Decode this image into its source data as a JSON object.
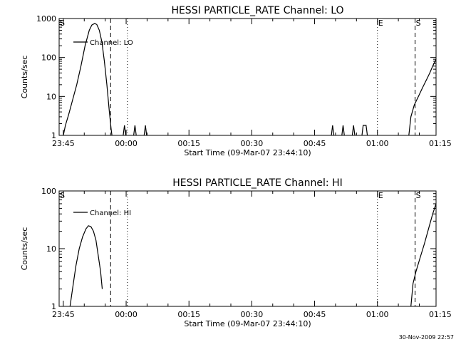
{
  "footer_timestamp": "30-Nov-2009 22:57",
  "chart_data": [
    {
      "type": "line",
      "title": "HESSI PARTICLE_RATE Channel: LO",
      "xlabel": "Start Time (09-Mar-07 23:44:10)",
      "ylabel": "Counts/sec",
      "y_scale": "log",
      "ylim": [
        1,
        1000
      ],
      "xlim": [
        -1,
        89
      ],
      "x_unit": "minutes from 23:45 (09-Mar-07)",
      "x_ticks": [
        {
          "x": 0,
          "label": "23:45"
        },
        {
          "x": 15,
          "label": "00:00"
        },
        {
          "x": 30,
          "label": "00:15"
        },
        {
          "x": 45,
          "label": "00:30"
        },
        {
          "x": 60,
          "label": "00:45"
        },
        {
          "x": 75,
          "label": "01:00"
        },
        {
          "x": 90,
          "label": "01:15"
        }
      ],
      "y_ticks": [
        {
          "y": 1,
          "label": "1"
        },
        {
          "y": 10,
          "label": "10"
        },
        {
          "y": 100,
          "label": "100"
        },
        {
          "y": 1000,
          "label": "1000"
        }
      ],
      "legend": {
        "label": "Channel: LO",
        "placement": "top-left"
      },
      "grid": false,
      "markers": [
        {
          "x": -1,
          "style": "dashed",
          "label": "S"
        },
        {
          "x": 11.3,
          "style": "dashed",
          "label": ""
        },
        {
          "x": 15.3,
          "style": "dotted",
          "label": ""
        },
        {
          "x": 75,
          "style": "dotted",
          "label": "E"
        },
        {
          "x": 84,
          "style": "dashed",
          "label": "S"
        },
        {
          "x": 89,
          "style": "dashdot",
          "label": ""
        }
      ],
      "series": [
        {
          "name": "Channel: LO",
          "segments": [
            [
              [
                0,
                1
              ],
              [
                0.5,
                1.8
              ],
              [
                1.3,
                3.5
              ],
              [
                2.2,
                8
              ],
              [
                3.2,
                20
              ],
              [
                4.2,
                60
              ],
              [
                5.2,
                200
              ],
              [
                6.2,
                500
              ],
              [
                6.8,
                680
              ],
              [
                7.5,
                750
              ],
              [
                8.0,
                700
              ],
              [
                8.6,
                500
              ],
              [
                9.2,
                250
              ],
              [
                9.8,
                80
              ],
              [
                10.4,
                20
              ],
              [
                11.0,
                4
              ],
              [
                11.4,
                1.5
              ],
              [
                11.6,
                1
              ]
            ],
            [
              [
                14.3,
                1
              ],
              [
                14.6,
                1.8
              ],
              [
                14.9,
                1
              ]
            ],
            [
              [
                16.8,
                1
              ],
              [
                17.1,
                1.8
              ],
              [
                17.4,
                1
              ]
            ],
            [
              [
                19.3,
                1
              ],
              [
                19.6,
                1.8
              ],
              [
                19.9,
                1
              ]
            ],
            [
              [
                64.0,
                1
              ],
              [
                64.3,
                1.8
              ],
              [
                64.6,
                1
              ]
            ],
            [
              [
                66.5,
                1
              ],
              [
                66.8,
                1.8
              ],
              [
                67.1,
                1
              ]
            ],
            [
              [
                69.0,
                1
              ],
              [
                69.3,
                1.8
              ],
              [
                69.6,
                1
              ]
            ],
            [
              [
                71.3,
                1
              ],
              [
                71.6,
                1.8
              ],
              [
                72.3,
                1.8
              ],
              [
                72.6,
                1
              ]
            ],
            [
              [
                82.5,
                1
              ],
              [
                83.0,
                3
              ],
              [
                83.8,
                6
              ],
              [
                84.8,
                10
              ],
              [
                85.8,
                17
              ],
              [
                86.8,
                28
              ],
              [
                87.5,
                40
              ],
              [
                88.2,
                60
              ],
              [
                89,
                90
              ]
            ]
          ]
        }
      ]
    },
    {
      "type": "line",
      "title": "HESSI PARTICLE_RATE Channel: HI",
      "xlabel": "Start Time (09-Mar-07 23:44:10)",
      "ylabel": "Counts/sec",
      "y_scale": "log",
      "ylim": [
        1,
        100
      ],
      "xlim": [
        -1,
        89
      ],
      "x_unit": "minutes from 23:45 (09-Mar-07)",
      "x_ticks": [
        {
          "x": 0,
          "label": "23:45"
        },
        {
          "x": 15,
          "label": "00:00"
        },
        {
          "x": 30,
          "label": "00:15"
        },
        {
          "x": 45,
          "label": "00:30"
        },
        {
          "x": 60,
          "label": "00:45"
        },
        {
          "x": 75,
          "label": "01:00"
        },
        {
          "x": 90,
          "label": "01:15"
        }
      ],
      "y_ticks": [
        {
          "y": 1,
          "label": "1"
        },
        {
          "y": 10,
          "label": "10"
        },
        {
          "y": 100,
          "label": "100"
        }
      ],
      "legend": {
        "label": "Channel: HI",
        "placement": "top-left"
      },
      "grid": false,
      "markers": [
        {
          "x": -1,
          "style": "dashed",
          "label": "S"
        },
        {
          "x": 11.3,
          "style": "dashed",
          "label": ""
        },
        {
          "x": 15.3,
          "style": "dotted",
          "label": ""
        },
        {
          "x": 75,
          "style": "dotted",
          "label": "E"
        },
        {
          "x": 84,
          "style": "dashed",
          "label": "S"
        },
        {
          "x": 89,
          "style": "dashdot",
          "label": ""
        }
      ],
      "series": [
        {
          "name": "Channel: HI",
          "segments": [
            [
              [
                1.6,
                1
              ],
              [
                2.2,
                2
              ],
              [
                3.0,
                5
              ],
              [
                3.8,
                10
              ],
              [
                4.6,
                16
              ],
              [
                5.4,
                22
              ],
              [
                6.0,
                25
              ],
              [
                6.6,
                24
              ],
              [
                7.2,
                20
              ],
              [
                7.8,
                14
              ],
              [
                8.4,
                7
              ],
              [
                8.9,
                4
              ],
              [
                9.3,
                2
              ]
            ],
            [
              [
                83.0,
                1
              ],
              [
                83.5,
                2.5
              ],
              [
                84.2,
                4
              ],
              [
                85.2,
                7
              ],
              [
                86.2,
                12
              ],
              [
                87.2,
                22
              ],
              [
                88.2,
                40
              ],
              [
                89,
                60
              ]
            ]
          ]
        }
      ]
    }
  ]
}
